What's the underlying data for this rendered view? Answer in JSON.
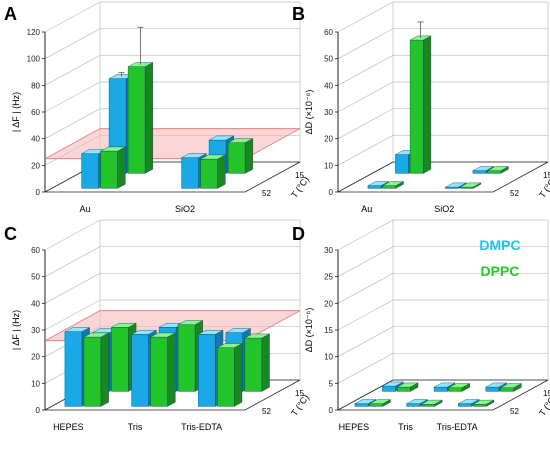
{
  "legend": {
    "items": [
      {
        "label": "DMPC",
        "color": "#18c8ee"
      },
      {
        "label": "DPPC",
        "color": "#22cc22"
      }
    ]
  },
  "colors": {
    "dmpc_front": "#1aa8e6",
    "dmpc_top": "#8fe6ff",
    "dmpc_side": "#0f7ab0",
    "dppc_front": "#23c42a",
    "dppc_top": "#8af58b",
    "dppc_side": "#168a1c",
    "plane_fill": "#f7b5b5",
    "plane_stroke": "#e07070",
    "grid": "#bdbdbd",
    "axis": "#222222"
  },
  "chart_data": [
    {
      "panel": "A",
      "type": "bar",
      "ylabel": "| ΔF | (Hz)",
      "zlabel": "T (°C)",
      "ylim": [
        0,
        120
      ],
      "yticks": [
        0,
        20,
        40,
        60,
        80,
        100,
        120
      ],
      "categories": [
        "Au",
        "SiO2"
      ],
      "temperatures": [
        "15",
        "52"
      ],
      "plane_level": 25,
      "series": [
        {
          "name": "DMPC",
          "values": {
            "15": [
              71,
              25
            ],
            "52": [
              26,
              23
            ]
          }
        },
        {
          "name": "DPPC",
          "values": {
            "15": [
              80,
              23
            ],
            "52": [
              28,
              22
            ]
          }
        }
      ],
      "error_bars": [
        {
          "category": "Au",
          "temperature": "15",
          "series": "DMPC",
          "value": 71,
          "error": 3
        },
        {
          "category": "Au",
          "temperature": "15",
          "series": "DPPC",
          "value": 80,
          "error": 28
        }
      ]
    },
    {
      "panel": "B",
      "type": "bar",
      "ylabel": "ΔD (×10⁻⁶)",
      "zlabel": "T (°C)",
      "ylim": [
        0,
        60
      ],
      "yticks": [
        0,
        10,
        20,
        30,
        40,
        50,
        60
      ],
      "categories": [
        "Au",
        "SiO2"
      ],
      "temperatures": [
        "15",
        "52"
      ],
      "series": [
        {
          "name": "DMPC",
          "values": {
            "15": [
              7,
              1
            ],
            "52": [
              1,
              0.5
            ]
          }
        },
        {
          "name": "DPPC",
          "values": {
            "15": [
              50,
              1
            ],
            "52": [
              1,
              0.5
            ]
          }
        }
      ],
      "error_bars": [
        {
          "category": "Au",
          "temperature": "15",
          "series": "DPPC",
          "value": 50,
          "error": 6
        }
      ]
    },
    {
      "panel": "C",
      "type": "bar",
      "ylabel": "| ΔF | (Hz)",
      "zlabel": "T (°C)",
      "ylim": [
        0,
        60
      ],
      "yticks": [
        0,
        10,
        20,
        30,
        40,
        50,
        60
      ],
      "categories": [
        "HEPES",
        "Tris",
        "Tris-EDTA"
      ],
      "temperatures": [
        "15",
        "52"
      ],
      "plane_level": 26,
      "series": [
        {
          "name": "DMPC",
          "values": {
            "15": [
              22,
              24,
              22
            ],
            "52": [
              28,
              27,
              27
            ]
          }
        },
        {
          "name": "DPPC",
          "values": {
            "15": [
              24,
              25,
              20
            ],
            "52": [
              26,
              26,
              22
            ]
          }
        }
      ]
    },
    {
      "panel": "D",
      "type": "bar",
      "ylabel": "ΔD (×10⁻⁶)",
      "zlabel": "T (°C)",
      "ylim": [
        0,
        30
      ],
      "yticks": [
        0,
        5,
        10,
        15,
        20,
        25,
        30
      ],
      "categories": [
        "HEPES",
        "Tris",
        "Tris-EDTA"
      ],
      "temperatures": [
        "15",
        "52"
      ],
      "series": [
        {
          "name": "DMPC",
          "values": {
            "15": [
              1,
              0.8,
              0.8
            ],
            "52": [
              0.5,
              0.5,
              0.5
            ]
          }
        },
        {
          "name": "DPPC",
          "values": {
            "15": [
              0.8,
              0.7,
              0.7
            ],
            "52": [
              0.5,
              0.4,
              0.4
            ]
          }
        }
      ]
    }
  ]
}
